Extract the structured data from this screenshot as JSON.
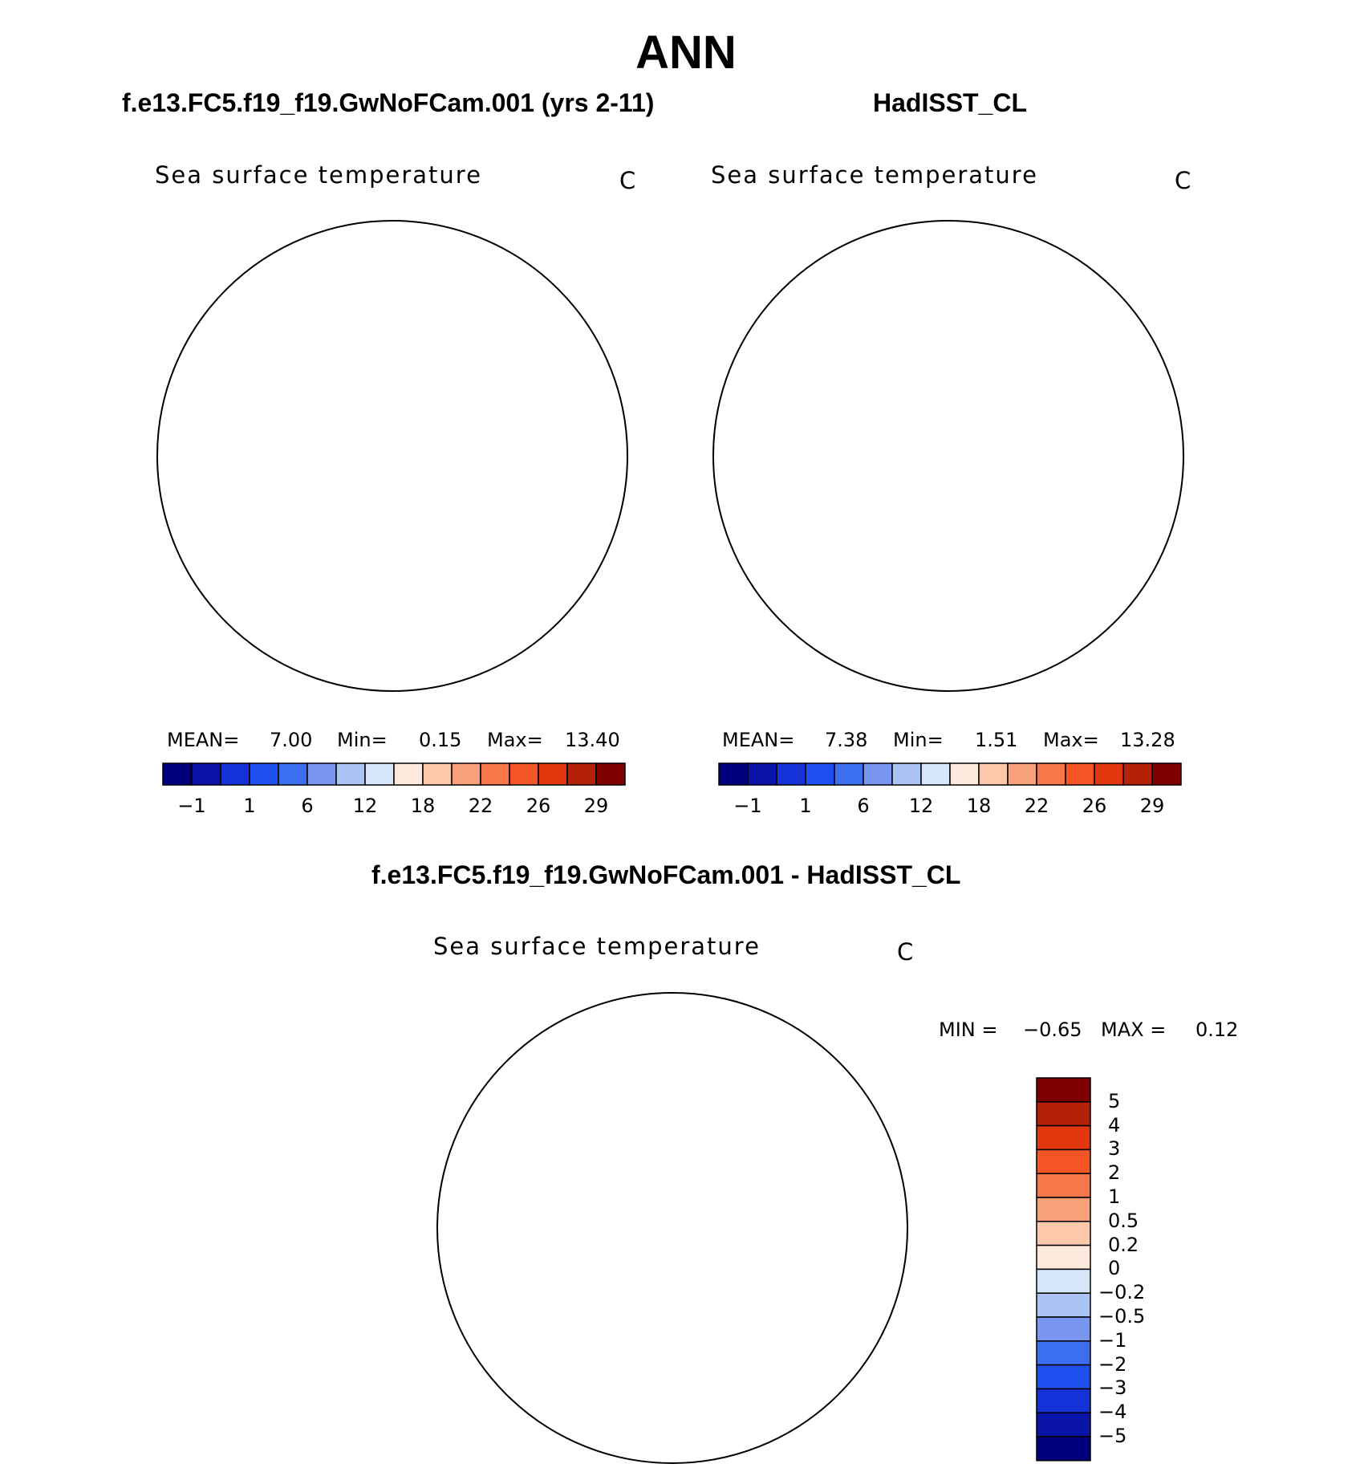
{
  "title": "ANN",
  "left_panel_header": "f.e13.FC5.f19_f19.GwNoFCam.001 (yrs 2-11)",
  "right_panel_header": "HadISST_CL",
  "diff_panel_header": "f.e13.FC5.f19_f19.GwNoFCam.001 - HadISST_CL",
  "colors": {
    "sst_scale": [
      "#00007f",
      "#0a14a8",
      "#1432d8",
      "#1e50f0",
      "#3c6ef0",
      "#7896f0",
      "#aac4f5",
      "#d6e6fa",
      "#fde9dc",
      "#fbc8ab",
      "#f8a07a",
      "#f7774a",
      "#f45525",
      "#e2360e",
      "#b52108",
      "#7f0000"
    ],
    "diff_scale": [
      "#00007f",
      "#0a14a8",
      "#1432d8",
      "#1e50f0",
      "#3c6ef0",
      "#7896f0",
      "#aac4f5",
      "#d6e6fa",
      "#fde9dc",
      "#fbc8ab",
      "#f8a07a",
      "#f7774a",
      "#f45525",
      "#e2360e",
      "#b52108",
      "#7f0000"
    ]
  },
  "chart_data": [
    {
      "type": "heatmap",
      "projection": "north polar stereographic",
      "title": "Sea surface temperature",
      "units": "C",
      "stats": {
        "mean_label": "MEAN=",
        "mean": "7.00",
        "min_label": "Min=",
        "min": "0.15",
        "max_label": "Max=",
        "max": "13.40"
      },
      "colorbar_ticks": [
        "−1",
        "1",
        "6",
        "12",
        "18",
        "22",
        "26",
        "29"
      ]
    },
    {
      "type": "heatmap",
      "projection": "north polar stereographic",
      "title": "Sea surface temperature",
      "units": "C",
      "stats": {
        "mean_label": "MEAN=",
        "mean": "7.38",
        "min_label": "Min=",
        "min": "1.51",
        "max_label": "Max=",
        "max": "13.28"
      },
      "colorbar_ticks": [
        "−1",
        "1",
        "6",
        "12",
        "18",
        "22",
        "26",
        "29"
      ]
    },
    {
      "type": "heatmap",
      "projection": "north polar stereographic",
      "title": "Sea surface temperature",
      "units": "C",
      "stats": {
        "min_label": "MIN =",
        "min": "−0.65",
        "max_label": "MAX =",
        "max": "0.12"
      },
      "colorbar_ticks": [
        "5",
        "4",
        "3",
        "2",
        "1",
        "0.5",
        "0.2",
        "0",
        "−0.2",
        "−0.5",
        "−1",
        "−2",
        "−3",
        "−4",
        "−5"
      ]
    }
  ]
}
